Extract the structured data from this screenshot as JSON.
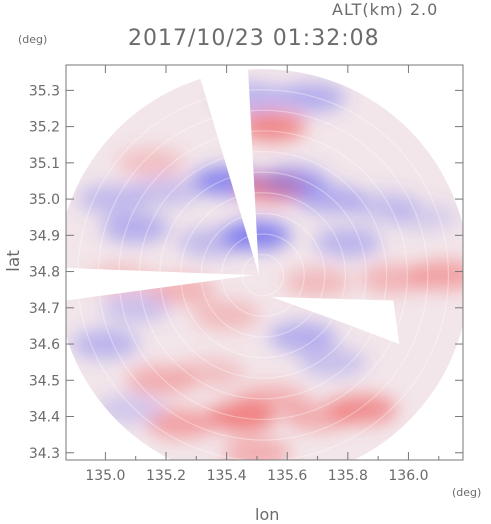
{
  "header": {
    "altitude": "ALT(km) 2.0",
    "timestamp": "2017/10/23 01:32:08"
  },
  "chart_data": {
    "type": "heatmap",
    "title": "2017/10/23 01:32:08",
    "subtitle": "ALT(km) 2.0",
    "xlabel": "lon",
    "ylabel": "lat",
    "x_unit": "(deg)",
    "y_unit": "(deg)",
    "xlim": [
      134.87,
      136.18
    ],
    "ylim": [
      34.28,
      35.37
    ],
    "xticks": [
      135.0,
      135.2,
      135.4,
      135.6,
      135.8,
      136.0
    ],
    "xtick_labels": [
      "135.0",
      "135.2",
      "135.4",
      "135.6",
      "135.8",
      "136.0"
    ],
    "yticks": [
      34.3,
      34.4,
      34.5,
      34.6,
      34.7,
      34.8,
      34.9,
      35.0,
      35.1,
      35.2,
      35.3
    ],
    "ytick_labels": [
      "34.3",
      "34.4",
      "34.5",
      "34.6",
      "34.7",
      "34.8",
      "34.9",
      "35.0",
      "35.1",
      "35.2",
      "35.3"
    ],
    "radar_center": [
      135.52,
      34.79
    ],
    "radar_radius_deg": 0.68,
    "colors": {
      "positive": "#f05a5a",
      "negative": "#5a5af0",
      "axis": "#777777"
    },
    "regions": [
      {
        "lon": 135.02,
        "lat": 35.0,
        "value": -0.35
      },
      {
        "lon": 135.2,
        "lat": 35.02,
        "value": -0.3
      },
      {
        "lon": 135.4,
        "lat": 35.05,
        "value": -0.75
      },
      {
        "lon": 135.55,
        "lat": 35.03,
        "value": 0.7
      },
      {
        "lon": 135.62,
        "lat": 35.05,
        "value": -0.55
      },
      {
        "lon": 135.74,
        "lat": 35.0,
        "value": -0.45
      },
      {
        "lon": 135.92,
        "lat": 34.98,
        "value": -0.3
      },
      {
        "lon": 136.05,
        "lat": 34.95,
        "value": -0.2
      },
      {
        "lon": 135.55,
        "lat": 35.2,
        "value": 0.75
      },
      {
        "lon": 135.48,
        "lat": 35.28,
        "value": -0.4
      },
      {
        "lon": 135.68,
        "lat": 35.28,
        "value": -0.45
      },
      {
        "lon": 135.15,
        "lat": 35.1,
        "value": 0.3
      },
      {
        "lon": 135.1,
        "lat": 34.92,
        "value": -0.45
      },
      {
        "lon": 135.5,
        "lat": 34.9,
        "value": -0.8
      },
      {
        "lon": 135.35,
        "lat": 34.88,
        "value": -0.35
      },
      {
        "lon": 135.8,
        "lat": 34.88,
        "value": -0.4
      },
      {
        "lon": 135.05,
        "lat": 34.78,
        "value": 0.3
      },
      {
        "lon": 135.25,
        "lat": 34.75,
        "value": 0.4
      },
      {
        "lon": 135.7,
        "lat": 34.77,
        "value": 0.35
      },
      {
        "lon": 135.95,
        "lat": 34.78,
        "value": 0.4
      },
      {
        "lon": 136.12,
        "lat": 34.79,
        "value": 0.55
      },
      {
        "lon": 135.4,
        "lat": 34.68,
        "value": 0.35
      },
      {
        "lon": 135.65,
        "lat": 34.62,
        "value": -0.45
      },
      {
        "lon": 135.75,
        "lat": 34.55,
        "value": -0.3
      },
      {
        "lon": 135.0,
        "lat": 34.6,
        "value": -0.4
      },
      {
        "lon": 135.18,
        "lat": 34.5,
        "value": 0.45
      },
      {
        "lon": 135.35,
        "lat": 34.52,
        "value": 0.3
      },
      {
        "lon": 135.55,
        "lat": 34.45,
        "value": 0.4
      },
      {
        "lon": 135.45,
        "lat": 34.4,
        "value": 0.8
      },
      {
        "lon": 135.25,
        "lat": 34.38,
        "value": 0.55
      },
      {
        "lon": 135.7,
        "lat": 34.4,
        "value": 0.45
      },
      {
        "lon": 135.85,
        "lat": 34.42,
        "value": 0.7
      },
      {
        "lon": 135.08,
        "lat": 34.42,
        "value": -0.25
      },
      {
        "lon": 135.5,
        "lat": 34.3,
        "value": 0.45
      },
      {
        "lon": 135.1,
        "lat": 34.7,
        "value": -0.3
      }
    ]
  }
}
